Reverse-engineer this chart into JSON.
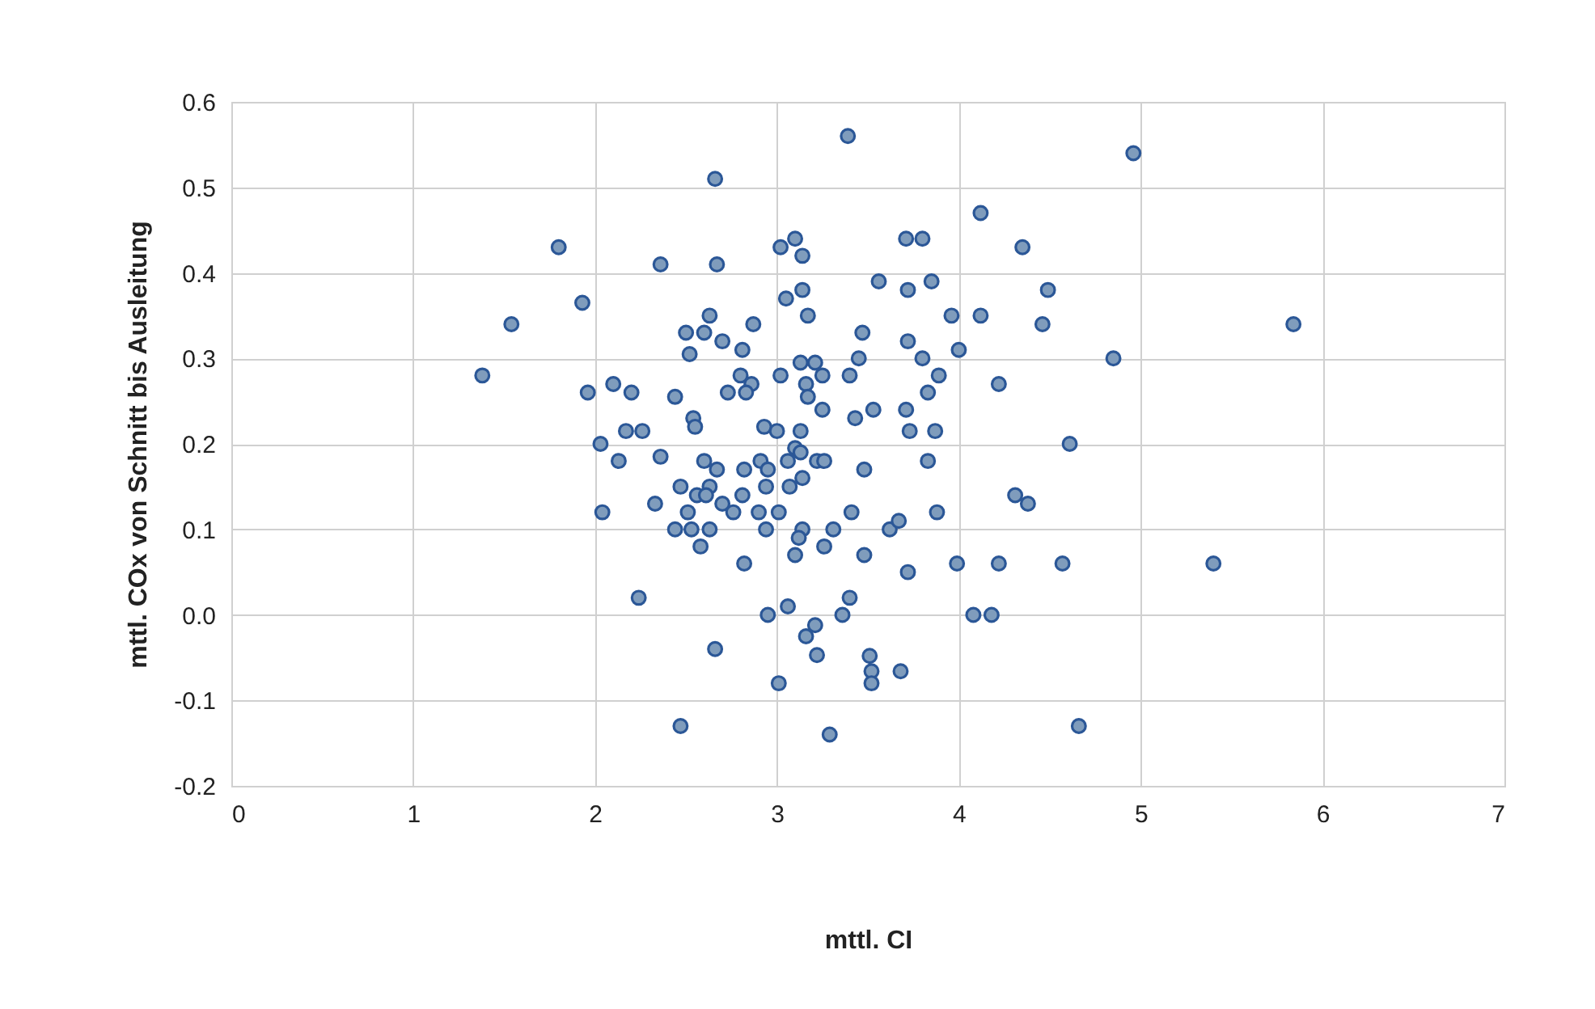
{
  "chart_data": {
    "type": "scatter",
    "xlabel": "mttl. CI",
    "ylabel": "mttl. COx von Schnitt bis Ausleitung",
    "xlim": [
      0,
      7
    ],
    "xticks": [
      0,
      1,
      2,
      3,
      4,
      5,
      6,
      7
    ],
    "ylim": [
      -0.2,
      0.6
    ],
    "yticks": [
      {
        "value": -0.2,
        "label": "-0.2"
      },
      {
        "value": -0.1,
        "label": "-0.1"
      },
      {
        "value": 0,
        "label": "0.0"
      },
      {
        "value": 0.1,
        "label": "0.1"
      },
      {
        "value": 0.2,
        "label": "0.2"
      },
      {
        "value": 0.3,
        "label": "0.3"
      },
      {
        "value": 0.4,
        "label": "0.4"
      },
      {
        "value": 0.5,
        "label": "0.5"
      },
      {
        "value": 0.6,
        "label": "0.6"
      }
    ],
    "grid": true,
    "marker": "circle",
    "series": [
      {
        "color": "#7f9cbc",
        "x": [
          4.96,
          3.39,
          2.66,
          4.12,
          1.8,
          2.36,
          2.67,
          3.02,
          3.1,
          3.14,
          3.71,
          3.8,
          4.35,
          1.93,
          1.54,
          1.38,
          3.14,
          3.05,
          3.56,
          3.72,
          3.85,
          4.49,
          2.63,
          3.17,
          3.96,
          4.12,
          4.46,
          5.84,
          4.85,
          2.5,
          2.6,
          2.87,
          2.7,
          2.52,
          2.81,
          3.47,
          3.45,
          3.72,
          3.8,
          4.0,
          3.13,
          3.21,
          3.16,
          3.02,
          3.25,
          3.4,
          2.8,
          2.73,
          2.86,
          2.83,
          3.17,
          1.96,
          2.1,
          2.2,
          2.44,
          3.89,
          3.83,
          4.22,
          3.25,
          3.43,
          3.53,
          3.71,
          2.54,
          2.55,
          2.93,
          3.0,
          3.13,
          3.1,
          3.13,
          3.73,
          3.87,
          4.61,
          2.03,
          2.17,
          2.26,
          2.13,
          2.36,
          2.6,
          2.67,
          2.82,
          2.91,
          2.95,
          3.06,
          3.22,
          3.26,
          3.48,
          3.83,
          3.14,
          2.47,
          2.63,
          2.94,
          3.07,
          2.56,
          2.61,
          2.81,
          2.33,
          2.7,
          4.31,
          4.38,
          2.04,
          2.51,
          2.76,
          2.9,
          3.01,
          3.41,
          3.88,
          2.44,
          2.53,
          2.63,
          2.94,
          3.14,
          3.31,
          3.62,
          3.67,
          2.58,
          3.12,
          3.26,
          3.1,
          3.48,
          2.82,
          3.99,
          4.22,
          4.57,
          5.4,
          3.72,
          2.24,
          3.4,
          3.06,
          2.95,
          3.36,
          4.08,
          4.18,
          3.21,
          3.16,
          3.22,
          3.51,
          3.52,
          3.68,
          3.52,
          3.01,
          2.66,
          2.47,
          4.66,
          3.29
        ],
        "values": [
          0.54,
          0.56,
          0.51,
          0.47,
          0.43,
          0.41,
          0.41,
          0.43,
          0.44,
          0.42,
          0.44,
          0.44,
          0.43,
          0.365,
          0.34,
          0.28,
          0.38,
          0.37,
          0.39,
          0.38,
          0.39,
          0.38,
          0.35,
          0.35,
          0.35,
          0.35,
          0.34,
          0.34,
          0.3,
          0.33,
          0.33,
          0.34,
          0.32,
          0.305,
          0.31,
          0.33,
          0.3,
          0.32,
          0.3,
          0.31,
          0.295,
          0.295,
          0.27,
          0.28,
          0.28,
          0.28,
          0.28,
          0.26,
          0.27,
          0.26,
          0.255,
          0.26,
          0.27,
          0.26,
          0.255,
          0.28,
          0.26,
          0.27,
          0.24,
          0.23,
          0.24,
          0.24,
          0.23,
          0.22,
          0.22,
          0.215,
          0.215,
          0.195,
          0.19,
          0.215,
          0.215,
          0.2,
          0.2,
          0.215,
          0.215,
          0.18,
          0.185,
          0.18,
          0.17,
          0.17,
          0.18,
          0.17,
          0.18,
          0.18,
          0.18,
          0.17,
          0.18,
          0.16,
          0.15,
          0.15,
          0.15,
          0.15,
          0.14,
          0.14,
          0.14,
          0.13,
          0.13,
          0.14,
          0.13,
          0.12,
          0.12,
          0.12,
          0.12,
          0.12,
          0.12,
          0.12,
          0.1,
          0.1,
          0.1,
          0.1,
          0.1,
          0.1,
          0.1,
          0.11,
          0.08,
          0.09,
          0.08,
          0.07,
          0.07,
          0.06,
          0.06,
          0.06,
          0.06,
          0.06,
          0.05,
          0.02,
          0.02,
          0.01,
          0.0,
          0.0,
          0.0,
          0.0,
          -0.012,
          -0.025,
          -0.047,
          -0.048,
          -0.066,
          -0.066,
          -0.08,
          -0.08,
          -0.04,
          -0.13,
          -0.13,
          -0.14
        ]
      }
    ]
  }
}
